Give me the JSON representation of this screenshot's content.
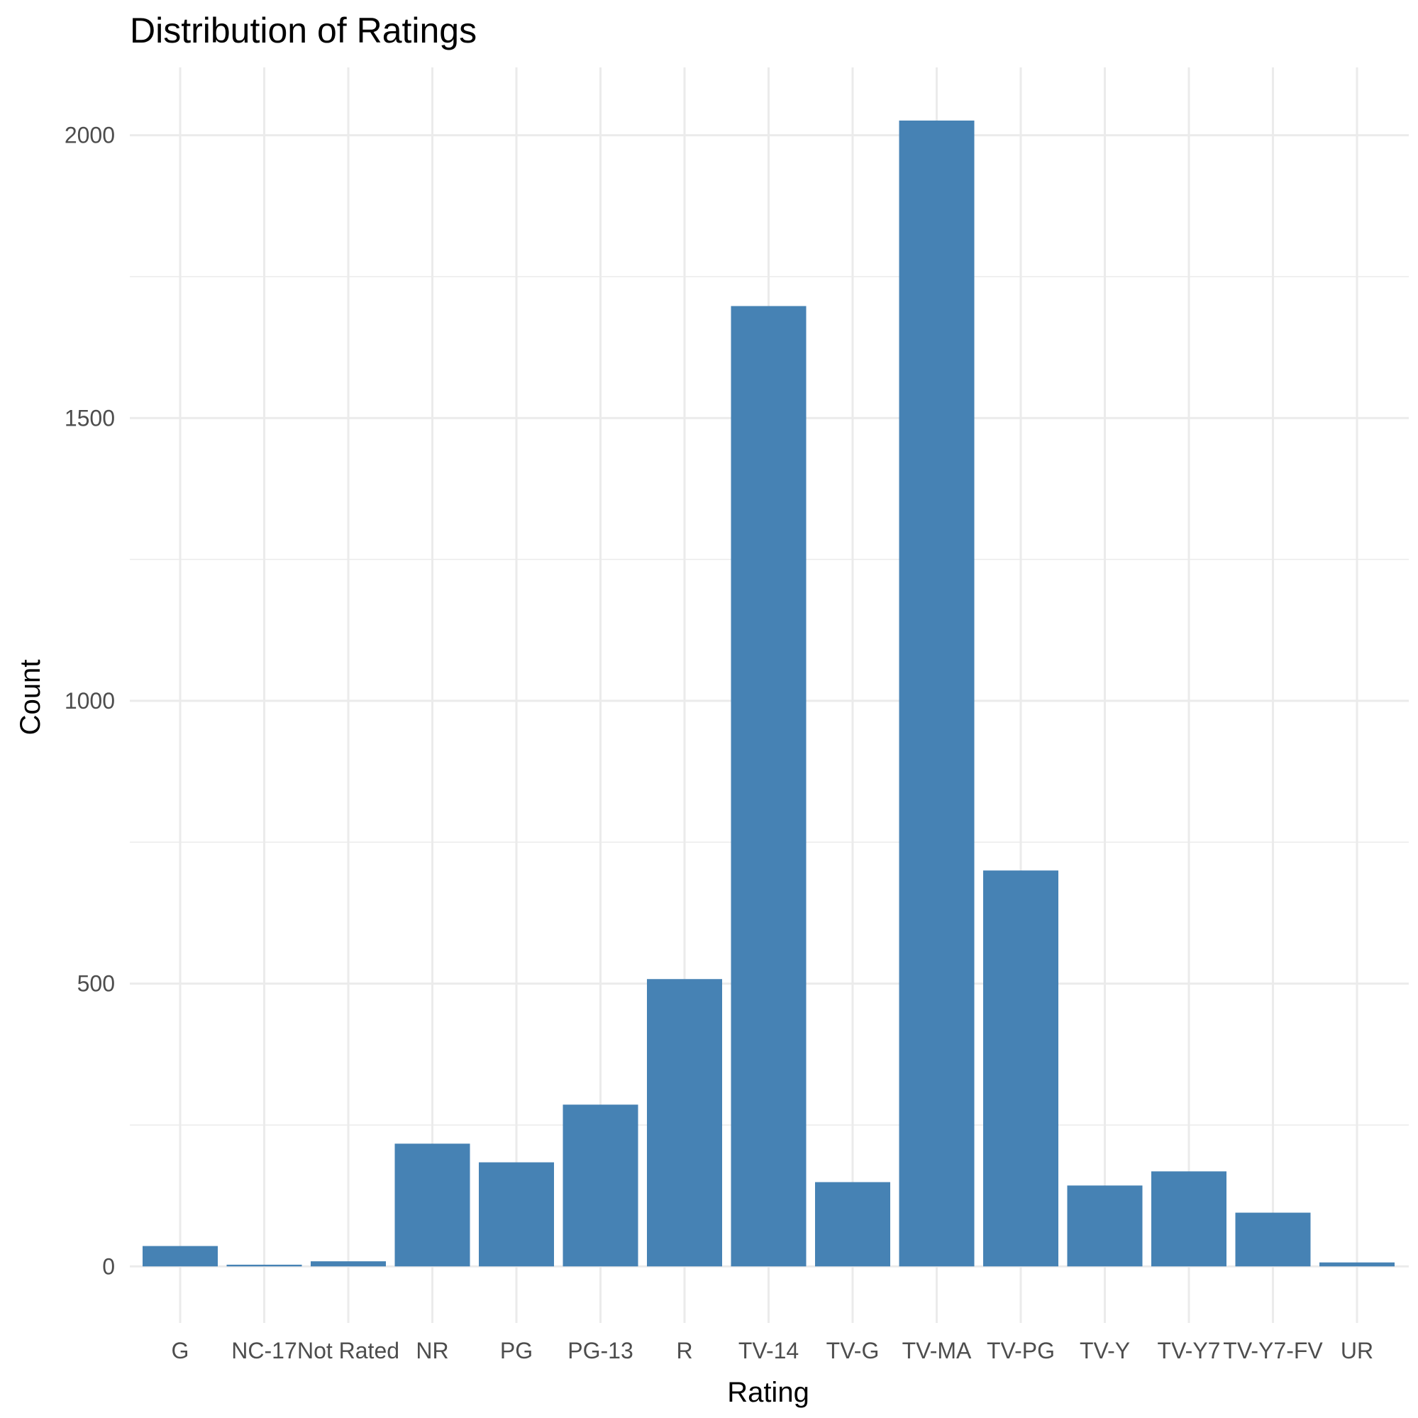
{
  "chart_data": {
    "type": "bar",
    "title": "Distribution of Ratings",
    "xlabel": "Rating",
    "ylabel": "Count",
    "categories": [
      "G",
      "NC-17",
      "Not Rated",
      "NR",
      "PG",
      "PG-13",
      "R",
      "TV-14",
      "TV-G",
      "TV-MA",
      "TV-PG",
      "TV-Y",
      "TV-Y7",
      "TV-Y7-FV",
      "UR"
    ],
    "values": [
      36,
      3,
      9,
      217,
      184,
      286,
      508,
      1698,
      149,
      2026,
      700,
      143,
      168,
      95,
      7
    ],
    "ylim": [
      -100,
      2120
    ],
    "yticks": [
      0,
      500,
      1000,
      1500,
      2000
    ],
    "ytick_labels": [
      "0",
      "500",
      "1000",
      "1500",
      "2000"
    ],
    "grid": true,
    "bar_color": "#4682B4"
  }
}
